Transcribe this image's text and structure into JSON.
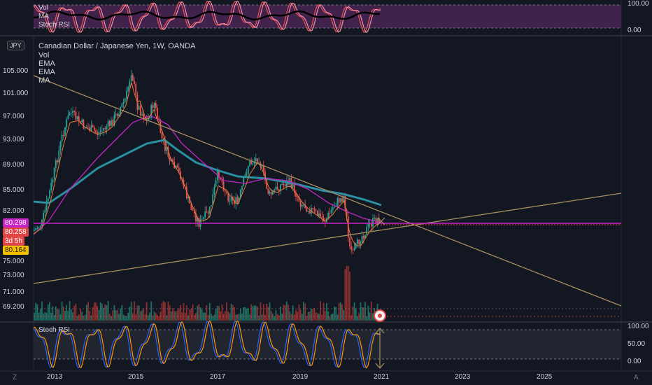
{
  "header": {
    "title": "Canadian Dollar / Japanese Yen, 1W, OANDA",
    "symbol_short": "JPY",
    "indicators": [
      "Vol",
      "EMA",
      "EMA",
      "MA"
    ]
  },
  "top_pane": {
    "labels": [
      "Vol",
      "MA",
      "Stoch RSI"
    ],
    "right_ticks": [
      "100.00",
      "0.00"
    ]
  },
  "bottom_pane": {
    "label": "Stoch RSI",
    "right_ticks": [
      "100.00",
      "50.00",
      "0.00"
    ]
  },
  "price_axis": {
    "ticks": [
      "105.000",
      "101.000",
      "97.000",
      "93.000",
      "89.000",
      "85.000",
      "82.000",
      "75.000",
      "73.000",
      "71.000",
      "69.200"
    ]
  },
  "price_tags": [
    {
      "text": "80.298",
      "color": "#c425c4"
    },
    {
      "text": "80.258",
      "color": "#e04646"
    },
    {
      "text": "3d 5h",
      "color": "#e04646"
    },
    {
      "text": "80.164",
      "color": "#f5c000"
    }
  ],
  "time_axis": {
    "ticks": [
      "2013",
      "2015",
      "2017",
      "2019",
      "2021",
      "2023",
      "2025"
    ]
  },
  "corner_icons": {
    "left": "Z",
    "right": "A"
  },
  "colors": {
    "background": "#131722",
    "ema_fast": "#e67e3a",
    "ema_slow": "#c425c4",
    "ma": "#2a8fa0",
    "trendline": "#a89060",
    "hline": "#c425c4",
    "top_pane_fill": "#5c2a5e"
  }
}
